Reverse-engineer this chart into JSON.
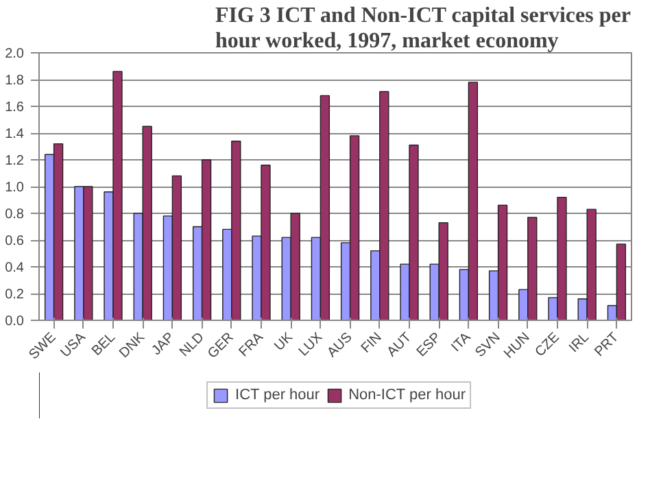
{
  "chart_data": {
    "type": "bar",
    "title": "FIG 3 ICT and Non-ICT capital services per hour worked, 1997, market economy",
    "categories": [
      "SWE",
      "USA",
      "BEL",
      "DNK",
      "JAP",
      "NLD",
      "GER",
      "FRA",
      "UK",
      "LUX",
      "AUS",
      "FIN",
      "AUT",
      "ESP",
      "ITA",
      "SVN",
      "HUN",
      "CZE",
      "IRL",
      "PRT"
    ],
    "series": [
      {
        "name": "ICT per hour",
        "color": "#9999ff",
        "values": [
          1.24,
          1.0,
          0.96,
          0.8,
          0.78,
          0.7,
          0.68,
          0.63,
          0.62,
          0.62,
          0.58,
          0.52,
          0.42,
          0.42,
          0.38,
          0.37,
          0.23,
          0.17,
          0.16,
          0.11
        ]
      },
      {
        "name": "Non-ICT per hour",
        "color": "#993366",
        "values": [
          1.32,
          1.0,
          1.86,
          1.45,
          1.08,
          1.2,
          1.34,
          1.16,
          0.8,
          1.68,
          1.38,
          1.71,
          1.31,
          0.73,
          1.78,
          0.86,
          0.77,
          0.92,
          0.83,
          0.57
        ]
      }
    ],
    "ylim": [
      0,
      2.0
    ],
    "yticks": [
      {
        "value": 0,
        "label": "0.0"
      },
      {
        "value": 0.2,
        "label": "0.2"
      },
      {
        "value": 0.4,
        "label": "0.4"
      },
      {
        "value": 0.6,
        "label": "0.6"
      },
      {
        "value": 0.8,
        "label": "0.8"
      },
      {
        "value": 1.0,
        "label": "1.0"
      },
      {
        "value": 1.2,
        "label": "1.2"
      },
      {
        "value": 1.4,
        "label": "1.4"
      },
      {
        "value": 1.6,
        "label": "1.6"
      },
      {
        "value": 1.8,
        "label": "1.8"
      },
      {
        "value": 2.0,
        "label": "2.0"
      }
    ],
    "grid": "y",
    "legend": "bottom"
  }
}
